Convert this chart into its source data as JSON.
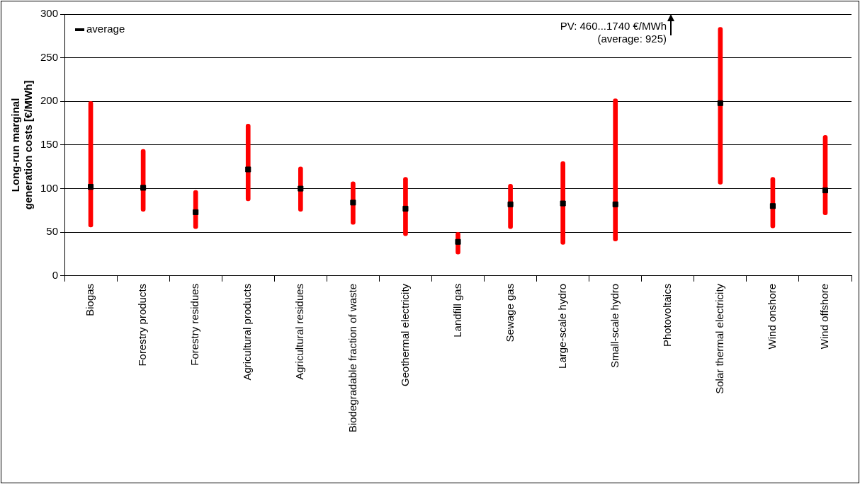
{
  "chart_data": {
    "type": "bar",
    "ylabel": "Long-run marginal\ngeneration costs [€/MWh]",
    "categories": [
      "Biogas",
      "Forestry products",
      "Forestry residues",
      "Agricultural products",
      "Agricultural residues",
      "Biodegradable fraction of waste",
      "Geothermal electricity",
      "Landfill gas",
      "Sewage gas",
      "Large-scale hydro",
      "Small-scale hydro",
      "Photovoltaics",
      "Solar thermal electricity",
      "Wind onshore",
      "Wind offshore"
    ],
    "series": [
      {
        "color": "#ff0000",
        "base": [
          56,
          74,
          54,
          86,
          74,
          59,
          46,
          25,
          54,
          36,
          40,
          null,
          105,
          55,
          70
        ],
        "values": [
          144,
          71,
          44,
          88,
          51,
          49,
          67,
          25,
          51,
          95,
          163,
          null,
          180,
          58,
          91
        ]
      },
      {
        "type": "scatter",
        "name": "average",
        "color": "#000000",
        "marker": "square",
        "x": [
          "Biogas",
          "Forestry products",
          "Forestry residues",
          "Agricultural products",
          "Agricultural residues",
          "Biodegradable fraction of waste",
          "Geothermal electricity",
          "Landfill gas",
          "Sewage gas",
          "Large-scale hydro",
          "Small-scale hydro",
          "Photovoltaics",
          "Solar thermal electricity",
          "Wind onshore",
          "Wind offshore"
        ],
        "values": [
          102,
          101,
          73,
          122,
          100,
          84,
          77,
          39,
          82,
          83,
          82,
          null,
          198,
          80,
          98
        ]
      }
    ],
    "ylim": [
      0,
      300
    ],
    "yticks": [
      0,
      50,
      100,
      150,
      200,
      250,
      300
    ],
    "grid": "y",
    "legend": "top left",
    "annotations": [
      "PV: 460...1740 €/MWh\n(average: 925)"
    ]
  }
}
